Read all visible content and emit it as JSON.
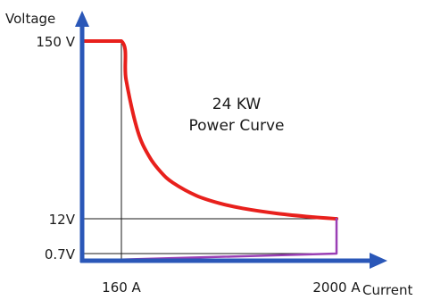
{
  "chart_data": {
    "type": "line",
    "title": "24 KW",
    "subtitle": "Power Curve",
    "xlabel": "Current",
    "ylabel": "Voltage",
    "x_ticks": [
      {
        "value": 160,
        "label": "160 A"
      },
      {
        "value": 2000,
        "label": "2000 A"
      }
    ],
    "y_ticks": [
      {
        "value": 150,
        "label": "150 V"
      },
      {
        "value": 12,
        "label": "12V"
      },
      {
        "value": 0.7,
        "label": "0.7V"
      }
    ],
    "series": [
      {
        "color": "#e8201c",
        "x": [
          0,
          160,
          200,
          300,
          400,
          500,
          600,
          800,
          1000,
          1200,
          1500,
          1800,
          2000
        ],
        "y": [
          150,
          150,
          120,
          80,
          60,
          48,
          40,
          30,
          24,
          20,
          16,
          13.3,
          12
        ]
      },
      {
        "color": "#9a3fb5",
        "x": [
          2000,
          2000,
          0
        ],
        "y": [
          12,
          0.7,
          0
        ]
      }
    ],
    "reference_lines": {
      "color": "#1a1a1a",
      "vertical_at_x": [
        160
      ],
      "horizontal_at_y": [
        12,
        0.7
      ]
    },
    "axis_color": "#2a57b8"
  }
}
